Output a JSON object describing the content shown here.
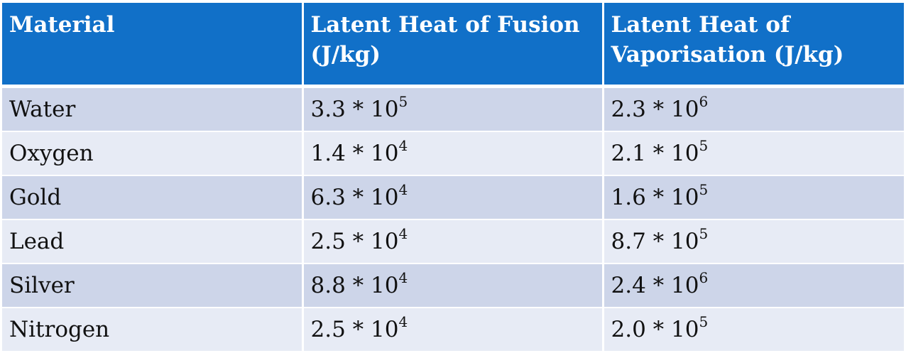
{
  "table": {
    "headers": [
      "Material",
      "Latent Heat of Fusion (J/kg)",
      "Latent Heat of Vaporisation (J/kg)"
    ],
    "rows": [
      {
        "material": "Water",
        "fusion": {
          "base": "3.3 * 10",
          "exp": "5"
        },
        "vaporisation": {
          "base": "2.3 * 10",
          "exp": "6"
        }
      },
      {
        "material": "Oxygen",
        "fusion": {
          "base": "1.4 * 10",
          "exp": "4"
        },
        "vaporisation": {
          "base": "2.1 * 10",
          "exp": "5"
        }
      },
      {
        "material": "Gold",
        "fusion": {
          "base": "6.3 * 10",
          "exp": "4"
        },
        "vaporisation": {
          "base": "1.6 * 10",
          "exp": "5"
        }
      },
      {
        "material": "Lead",
        "fusion": {
          "base": "2.5 * 10",
          "exp": "4"
        },
        "vaporisation": {
          "base": "8.7 * 10",
          "exp": "5"
        }
      },
      {
        "material": "Silver",
        "fusion": {
          "base": "8.8 * 10",
          "exp": "4"
        },
        "vaporisation": {
          "base": "2.4 * 10",
          "exp": "6"
        }
      },
      {
        "material": "Nitrogen",
        "fusion": {
          "base": "2.5 * 10",
          "exp": "4"
        },
        "vaporisation": {
          "base": "2.0 * 10",
          "exp": "5"
        }
      }
    ]
  },
  "colors": {
    "header_bg": "#1170c8",
    "row_dark": "#cdd5e9",
    "row_light": "#e7ebf5"
  }
}
